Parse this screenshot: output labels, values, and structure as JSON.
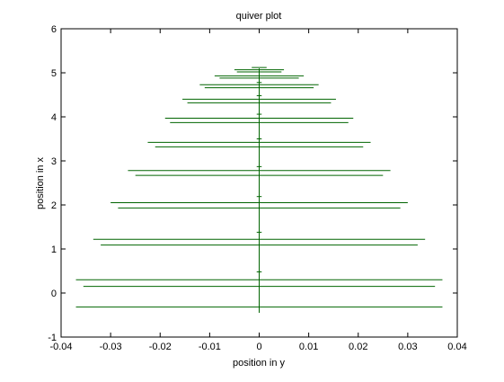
{
  "chart_data": {
    "type": "quiver",
    "title": "quiver plot",
    "xlabel": "position in y",
    "ylabel": "position in x",
    "xlim": [
      -0.04,
      0.04
    ],
    "ylim": [
      -1,
      6
    ],
    "x_ticks": [
      -0.04,
      -0.03,
      -0.02,
      -0.01,
      0,
      0.01,
      0.02,
      0.03,
      0.04
    ],
    "x_tick_labels": [
      "-0.04",
      "-0.03",
      "-0.02",
      "-0.01",
      "0",
      "0.01",
      "0.02",
      "0.03",
      "0.04"
    ],
    "y_ticks": [
      -1,
      0,
      1,
      2,
      3,
      4,
      5,
      6
    ],
    "y_tick_labels": [
      "-1",
      "0",
      "1",
      "2",
      "3",
      "4",
      "5",
      "6"
    ],
    "grid": false,
    "line_color": "#006400",
    "axis_color": "#000000",
    "background": "#ffffff",
    "centerline": {
      "x": 0,
      "y_from": -0.45,
      "y_to": 5.1
    },
    "segments": [
      {
        "x1": -0.037,
        "y1": 0.3,
        "x2": 0.037,
        "y2": 0.3
      },
      {
        "x1": -0.0355,
        "y1": 0.15,
        "x2": 0.0355,
        "y2": 0.15
      },
      {
        "x1": -0.037,
        "y1": -0.32,
        "x2": 0.037,
        "y2": -0.32
      },
      {
        "x1": -0.0005,
        "y1": 0.48,
        "x2": 0.0005,
        "y2": 0.48
      },
      {
        "x1": -0.0335,
        "y1": 1.22,
        "x2": 0.0335,
        "y2": 1.22
      },
      {
        "x1": -0.032,
        "y1": 1.09,
        "x2": 0.032,
        "y2": 1.09
      },
      {
        "x1": -0.0005,
        "y1": 1.38,
        "x2": 0.0005,
        "y2": 1.38
      },
      {
        "x1": -0.03,
        "y1": 2.05,
        "x2": 0.03,
        "y2": 2.05
      },
      {
        "x1": -0.0285,
        "y1": 1.93,
        "x2": 0.0285,
        "y2": 1.93
      },
      {
        "x1": -0.0005,
        "y1": 2.19,
        "x2": 0.0005,
        "y2": 2.19
      },
      {
        "x1": -0.0265,
        "y1": 2.78,
        "x2": 0.0265,
        "y2": 2.78
      },
      {
        "x1": -0.025,
        "y1": 2.67,
        "x2": 0.025,
        "y2": 2.67
      },
      {
        "x1": -0.0005,
        "y1": 2.87,
        "x2": 0.0005,
        "y2": 2.87
      },
      {
        "x1": -0.0225,
        "y1": 3.42,
        "x2": 0.0225,
        "y2": 3.42
      },
      {
        "x1": -0.021,
        "y1": 3.32,
        "x2": 0.021,
        "y2": 3.32
      },
      {
        "x1": -0.0005,
        "y1": 3.5,
        "x2": 0.0005,
        "y2": 3.5
      },
      {
        "x1": -0.019,
        "y1": 3.97,
        "x2": 0.019,
        "y2": 3.97
      },
      {
        "x1": -0.018,
        "y1": 3.87,
        "x2": 0.018,
        "y2": 3.87
      },
      {
        "x1": -0.0005,
        "y1": 4.06,
        "x2": 0.0005,
        "y2": 4.06
      },
      {
        "x1": -0.0155,
        "y1": 4.4,
        "x2": 0.0155,
        "y2": 4.4
      },
      {
        "x1": -0.0145,
        "y1": 4.32,
        "x2": 0.0145,
        "y2": 4.32
      },
      {
        "x1": -0.0005,
        "y1": 4.48,
        "x2": 0.0005,
        "y2": 4.48
      },
      {
        "x1": -0.012,
        "y1": 4.73,
        "x2": 0.012,
        "y2": 4.73
      },
      {
        "x1": -0.011,
        "y1": 4.66,
        "x2": 0.011,
        "y2": 4.66
      },
      {
        "x1": -0.0005,
        "y1": 4.78,
        "x2": 0.0005,
        "y2": 4.78
      },
      {
        "x1": -0.009,
        "y1": 4.93,
        "x2": 0.009,
        "y2": 4.93
      },
      {
        "x1": -0.008,
        "y1": 4.88,
        "x2": 0.008,
        "y2": 4.88
      },
      {
        "x1": -0.005,
        "y1": 5.07,
        "x2": 0.005,
        "y2": 5.07
      },
      {
        "x1": -0.0045,
        "y1": 5.02,
        "x2": 0.0045,
        "y2": 5.02
      },
      {
        "x1": -0.0015,
        "y1": 5.12,
        "x2": 0.0015,
        "y2": 5.12
      }
    ]
  }
}
